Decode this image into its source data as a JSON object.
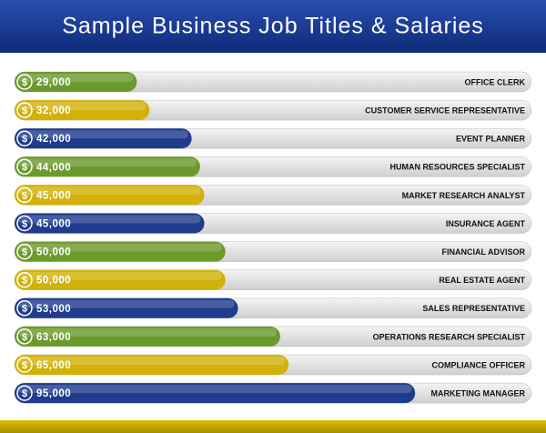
{
  "chart_data": {
    "type": "bar",
    "orientation": "horizontal",
    "title": "Sample Business Job Titles & Salaries",
    "categories": [
      "OFFICE CLERK",
      "CUSTOMER SERVICE REPRESENTATIVE",
      "EVENT PLANNER",
      "HUMAN RESOURCES SPECIALIST",
      "MARKET RESEARCH ANALYST",
      "INSURANCE AGENT",
      "FINANCIAL ADVISOR",
      "REAL ESTATE AGENT",
      "SALES REPRESENTATIVE",
      "OPERATIONS RESEARCH SPECIALIST",
      "COMPLIANCE OFFICER",
      "MARKETING MANAGER"
    ],
    "values": [
      29000,
      32000,
      42000,
      44000,
      45000,
      45000,
      50000,
      50000,
      53000,
      63000,
      65000,
      95000
    ],
    "value_labels": [
      "29,000",
      "32,000",
      "42,000",
      "44,000",
      "45,000",
      "45,000",
      "50,000",
      "50,000",
      "53,000",
      "63,000",
      "65,000",
      "95,000"
    ],
    "colors": [
      "#6b9a2c",
      "#d2b10a",
      "#1f3b8c",
      "#6b9a2c",
      "#d2b10a",
      "#1f3b8c",
      "#6b9a2c",
      "#d2b10a",
      "#1f3b8c",
      "#6b9a2c",
      "#d2b10a",
      "#1f3b8c"
    ]
  }
}
